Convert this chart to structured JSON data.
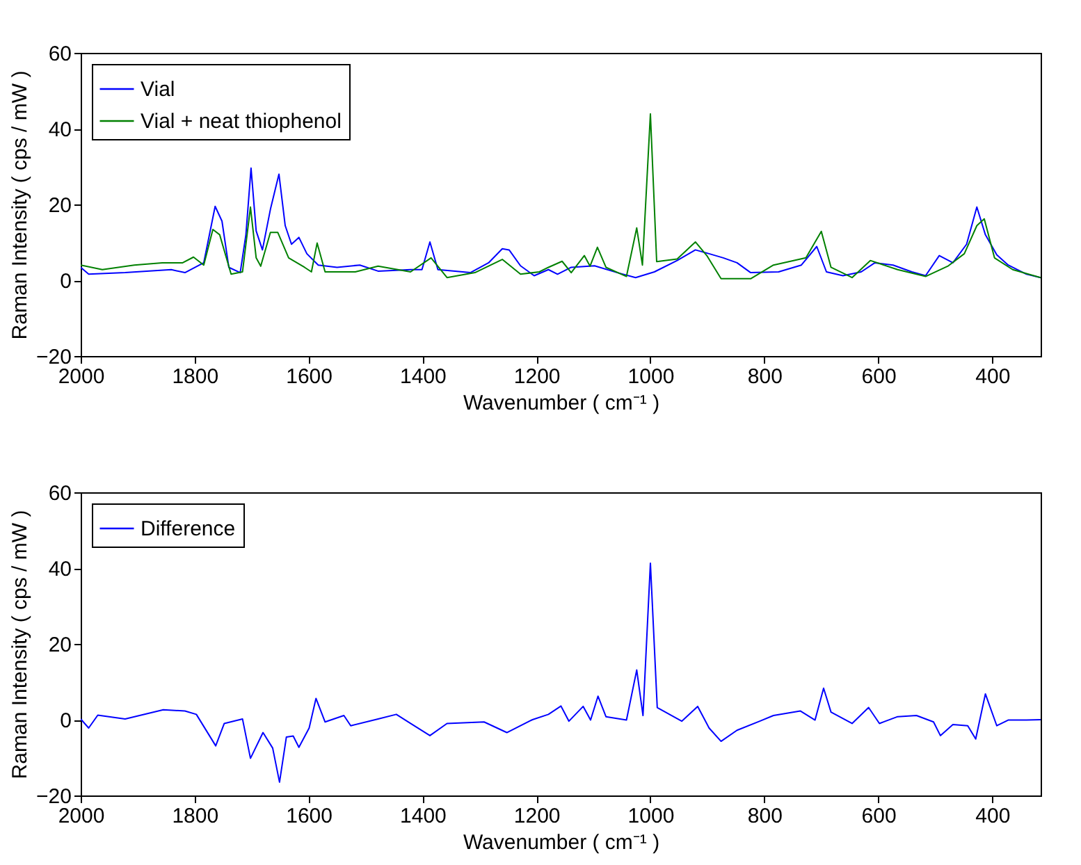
{
  "chart_data": [
    {
      "type": "line",
      "xlabel": "Wavenumber ( cm⁻¹ )",
      "ylabel": "Raman Intensity ( cps / mW )",
      "xlim": [
        2000,
        315
      ],
      "xticks": [
        2000,
        1800,
        1600,
        1400,
        1200,
        1000,
        800,
        600,
        400
      ],
      "ylim": [
        -20,
        60
      ],
      "yticks": [
        -20,
        0,
        20,
        40,
        60
      ],
      "legend": "top left",
      "line_style": "solid",
      "series": [
        {
          "name": "Vial",
          "color": "#0000ff",
          "x": [
            2000,
            1986,
            1922,
            1841,
            1817,
            1784,
            1764,
            1752,
            1740,
            1720,
            1710,
            1701,
            1692,
            1681,
            1667,
            1652,
            1641,
            1630,
            1617,
            1603,
            1583,
            1550,
            1510,
            1478,
            1421,
            1401,
            1387,
            1373,
            1316,
            1284,
            1260,
            1248,
            1228,
            1204,
            1179,
            1163,
            1139,
            1098,
            1058,
            1026,
            993,
            953,
            921,
            897,
            872,
            848,
            824,
            775,
            735,
            708,
            691,
            662,
            630,
            606,
            574,
            541,
            517,
            493,
            469,
            445,
            427,
            412,
            392,
            372,
            340,
            315
          ],
          "values": [
            3.4,
            1.6,
            2,
            2.8,
            2,
            4.6,
            19.5,
            15.6,
            3.4,
            2,
            12,
            29.6,
            13,
            8,
            18.7,
            28,
            14.4,
            9.5,
            11.3,
            7,
            4,
            3.4,
            4,
            2.4,
            2.8,
            2.8,
            10.1,
            2.8,
            2,
            4.6,
            8.3,
            8,
            3.8,
            1.2,
            2.8,
            1.6,
            3.4,
            3.8,
            2,
            0.7,
            2.2,
            5.2,
            8,
            7,
            5.9,
            4.6,
            2,
            2.2,
            4,
            8.9,
            2.2,
            1.2,
            2.2,
            4.6,
            4,
            2.2,
            1.2,
            6.5,
            4.6,
            9.5,
            19.3,
            12,
            6.7,
            4,
            1.6,
            0.7
          ]
        },
        {
          "name": "Vial + neat thiophenol",
          "color": "#008000",
          "x": [
            2000,
            1962,
            1906,
            1857,
            1821,
            1802,
            1784,
            1768,
            1756,
            1736,
            1716,
            1702,
            1692,
            1684,
            1667,
            1654,
            1635,
            1607,
            1595,
            1585,
            1571,
            1518,
            1478,
            1421,
            1385,
            1357,
            1308,
            1260,
            1228,
            1195,
            1179,
            1155,
            1139,
            1116,
            1106,
            1093,
            1078,
            1042,
            1024,
            1014,
            1000,
            989,
            953,
            921,
            901,
            876,
            824,
            784,
            727,
            700,
            683,
            646,
            614,
            566,
            517,
            477,
            449,
            427,
            414,
            396,
            364,
            315
          ],
          "values": [
            4,
            2.8,
            4,
            4.6,
            4.6,
            6.1,
            4,
            13.4,
            12,
            1.6,
            2.2,
            19.3,
            5.9,
            3.7,
            12.6,
            12.6,
            5.9,
            3.4,
            2.2,
            9.8,
            2.2,
            2.2,
            3.7,
            2.2,
            5.9,
            0.7,
            2,
            5.5,
            1.6,
            2.2,
            3.4,
            5,
            2,
            6.5,
            3.7,
            8.7,
            3.4,
            1,
            13.8,
            4,
            43.9,
            4.9,
            5.6,
            10.1,
            6.5,
            0.4,
            0.4,
            4,
            5.9,
            12.9,
            3.4,
            0.7,
            5.2,
            2.8,
            1,
            3.8,
            7,
            14.4,
            16.2,
            5.9,
            2.8,
            0.7
          ]
        }
      ]
    },
    {
      "type": "line",
      "xlabel": "Wavenumber ( cm⁻¹ )",
      "ylabel": "Raman Intensity ( cps / mW )",
      "xlim": [
        2000,
        315
      ],
      "xticks": [
        2000,
        1800,
        1600,
        1400,
        1200,
        1000,
        800,
        600,
        400
      ],
      "ylim": [
        -20,
        60
      ],
      "yticks": [
        -20,
        0,
        20,
        40,
        60
      ],
      "legend": "top left",
      "line_style": "solid",
      "series": [
        {
          "name": "Difference",
          "color": "#0000ff",
          "x": [
            2000,
            1986,
            1970,
            1922,
            1855,
            1817,
            1797,
            1763,
            1748,
            1716,
            1702,
            1680,
            1663,
            1651,
            1639,
            1627,
            1617,
            1599,
            1587,
            1571,
            1538,
            1526,
            1478,
            1446,
            1421,
            1387,
            1357,
            1292,
            1252,
            1207,
            1179,
            1157,
            1143,
            1118,
            1105,
            1092,
            1078,
            1042,
            1024,
            1013,
            1000,
            988,
            945,
            917,
            897,
            876,
            848,
            808,
            784,
            737,
            711,
            696,
            683,
            646,
            617,
            598,
            566,
            533,
            503,
            491,
            469,
            443,
            429,
            412,
            392,
            372,
            340,
            315
          ],
          "values": [
            0.2,
            -2.2,
            1.2,
            0.2,
            2.6,
            2.3,
            1.4,
            -6.9,
            -1,
            0.2,
            -10.2,
            -3.4,
            -7.5,
            -16.5,
            -4.6,
            -4.3,
            -7.3,
            -2.2,
            5.6,
            -0.6,
            1.1,
            -1.6,
            0.2,
            1.4,
            -1,
            -4.2,
            -1,
            -0.6,
            -3.4,
            0,
            1.4,
            3.6,
            -0.4,
            3.5,
            -0.1,
            6.2,
            0.8,
            -0.1,
            13.1,
            1.1,
            41.3,
            3.2,
            -0.4,
            3.5,
            -2.2,
            -5.7,
            -2.8,
            -0.4,
            1.1,
            2.3,
            -0.1,
            8.3,
            2,
            -1,
            3.2,
            -1,
            0.8,
            1.1,
            -0.6,
            -4.2,
            -1.3,
            -1.6,
            -5.1,
            6.8,
            -1.6,
            -0.1,
            -0.1,
            0
          ]
        }
      ]
    }
  ]
}
